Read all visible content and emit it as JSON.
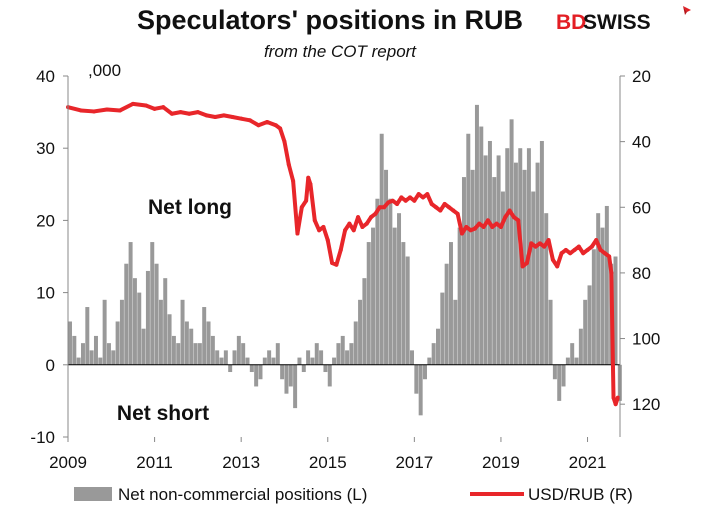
{
  "chart_data": {
    "type": "bar+line",
    "title": "Speculators' positions in RUB",
    "subtitle": "from the COT report",
    "left_axis_unit": ",000",
    "left_ylim": [
      -10,
      40
    ],
    "left_ticks": [
      -10,
      0,
      10,
      20,
      30,
      40
    ],
    "right_ylim": [
      130,
      20
    ],
    "right_ticks": [
      20,
      40,
      60,
      80,
      100,
      120
    ],
    "right_axis_inverted": true,
    "xlim": [
      2009,
      2021.75
    ],
    "x_ticks": [
      2009,
      2011,
      2013,
      2015,
      2017,
      2019,
      2021
    ],
    "annotations": [
      "Net long",
      "Net short"
    ],
    "legend_placement": "bottom",
    "series": [
      {
        "name": "Net non-commercial positions (L)",
        "type": "bar",
        "axis": "left",
        "color": "#999999",
        "points": [
          [
            2009.0,
            6
          ],
          [
            2009.1,
            4
          ],
          [
            2009.2,
            1
          ],
          [
            2009.3,
            3
          ],
          [
            2009.4,
            8
          ],
          [
            2009.5,
            2
          ],
          [
            2009.6,
            4
          ],
          [
            2009.7,
            1
          ],
          [
            2009.8,
            9
          ],
          [
            2009.9,
            3
          ],
          [
            2010.0,
            2
          ],
          [
            2010.1,
            6
          ],
          [
            2010.2,
            9
          ],
          [
            2010.3,
            14
          ],
          [
            2010.4,
            17
          ],
          [
            2010.5,
            12
          ],
          [
            2010.6,
            10
          ],
          [
            2010.7,
            5
          ],
          [
            2010.8,
            13
          ],
          [
            2010.9,
            17
          ],
          [
            2011.0,
            14
          ],
          [
            2011.1,
            9
          ],
          [
            2011.2,
            12
          ],
          [
            2011.3,
            7
          ],
          [
            2011.4,
            4
          ],
          [
            2011.5,
            3
          ],
          [
            2011.6,
            9
          ],
          [
            2011.7,
            6
          ],
          [
            2011.8,
            5
          ],
          [
            2011.9,
            3
          ],
          [
            2012.0,
            3
          ],
          [
            2012.1,
            8
          ],
          [
            2012.2,
            6
          ],
          [
            2012.3,
            4
          ],
          [
            2012.4,
            2
          ],
          [
            2012.5,
            1
          ],
          [
            2012.6,
            2
          ],
          [
            2012.7,
            -1
          ],
          [
            2012.8,
            2
          ],
          [
            2012.9,
            4
          ],
          [
            2013.0,
            3
          ],
          [
            2013.1,
            1
          ],
          [
            2013.2,
            -1
          ],
          [
            2013.3,
            -3
          ],
          [
            2013.4,
            -2
          ],
          [
            2013.5,
            1
          ],
          [
            2013.6,
            2
          ],
          [
            2013.7,
            1
          ],
          [
            2013.8,
            3
          ],
          [
            2013.9,
            -2
          ],
          [
            2014.0,
            -4
          ],
          [
            2014.1,
            -3
          ],
          [
            2014.2,
            -6
          ],
          [
            2014.3,
            1
          ],
          [
            2014.4,
            -1
          ],
          [
            2014.5,
            2
          ],
          [
            2014.6,
            1
          ],
          [
            2014.7,
            3
          ],
          [
            2014.8,
            2
          ],
          [
            2014.9,
            -1
          ],
          [
            2015.0,
            -3
          ],
          [
            2015.1,
            1
          ],
          [
            2015.2,
            3
          ],
          [
            2015.3,
            4
          ],
          [
            2015.4,
            2
          ],
          [
            2015.5,
            3
          ],
          [
            2015.6,
            6
          ],
          [
            2015.7,
            9
          ],
          [
            2015.8,
            12
          ],
          [
            2015.9,
            17
          ],
          [
            2016.0,
            19
          ],
          [
            2016.1,
            23
          ],
          [
            2016.2,
            32
          ],
          [
            2016.3,
            27
          ],
          [
            2016.4,
            23
          ],
          [
            2016.5,
            19
          ],
          [
            2016.6,
            21
          ],
          [
            2016.7,
            17
          ],
          [
            2016.8,
            15
          ],
          [
            2016.9,
            2
          ],
          [
            2017.0,
            -4
          ],
          [
            2017.1,
            -7
          ],
          [
            2017.2,
            -2
          ],
          [
            2017.3,
            1
          ],
          [
            2017.4,
            3
          ],
          [
            2017.5,
            5
          ],
          [
            2017.6,
            10
          ],
          [
            2017.7,
            14
          ],
          [
            2017.8,
            17
          ],
          [
            2017.9,
            9
          ],
          [
            2018.0,
            19
          ],
          [
            2018.1,
            26
          ],
          [
            2018.2,
            32
          ],
          [
            2018.3,
            27
          ],
          [
            2018.4,
            36
          ],
          [
            2018.5,
            33
          ],
          [
            2018.6,
            29
          ],
          [
            2018.7,
            31
          ],
          [
            2018.8,
            26
          ],
          [
            2018.9,
            29
          ],
          [
            2019.0,
            24
          ],
          [
            2019.1,
            30
          ],
          [
            2019.2,
            34
          ],
          [
            2019.3,
            28
          ],
          [
            2019.4,
            30
          ],
          [
            2019.5,
            27
          ],
          [
            2019.6,
            30
          ],
          [
            2019.7,
            24
          ],
          [
            2019.8,
            28
          ],
          [
            2019.9,
            31
          ],
          [
            2020.0,
            21
          ],
          [
            2020.1,
            9
          ],
          [
            2020.2,
            -2
          ],
          [
            2020.3,
            -5
          ],
          [
            2020.4,
            -3
          ],
          [
            2020.5,
            1
          ],
          [
            2020.6,
            3
          ],
          [
            2020.7,
            1
          ],
          [
            2020.8,
            5
          ],
          [
            2020.9,
            9
          ],
          [
            2021.0,
            11
          ],
          [
            2021.1,
            16
          ],
          [
            2021.2,
            21
          ],
          [
            2021.3,
            19
          ],
          [
            2021.4,
            22
          ],
          [
            2021.5,
            14
          ],
          [
            2021.6,
            15
          ],
          [
            2021.7,
            -5
          ]
        ]
      },
      {
        "name": "USD/RUB (R)",
        "type": "line",
        "axis": "right",
        "color": "#e8262a",
        "points": [
          [
            2009.0,
            29.5
          ],
          [
            2009.3,
            30.5
          ],
          [
            2009.6,
            30.8
          ],
          [
            2009.9,
            30.2
          ],
          [
            2010.2,
            30.5
          ],
          [
            2010.5,
            28.5
          ],
          [
            2010.8,
            29.0
          ],
          [
            2011.0,
            30.0
          ],
          [
            2011.2,
            29.5
          ],
          [
            2011.4,
            31.5
          ],
          [
            2011.6,
            31.0
          ],
          [
            2011.8,
            31.5
          ],
          [
            2012.0,
            31.0
          ],
          [
            2012.2,
            32.0
          ],
          [
            2012.4,
            32.5
          ],
          [
            2012.6,
            32.0
          ],
          [
            2012.8,
            32.5
          ],
          [
            2013.0,
            33.0
          ],
          [
            2013.2,
            33.5
          ],
          [
            2013.4,
            35.0
          ],
          [
            2013.6,
            34.0
          ],
          [
            2013.8,
            35.0
          ],
          [
            2013.9,
            36.0
          ],
          [
            2014.0,
            40.0
          ],
          [
            2014.1,
            47.0
          ],
          [
            2014.2,
            52.0
          ],
          [
            2014.3,
            68.0
          ],
          [
            2014.4,
            60.0
          ],
          [
            2014.5,
            58.0
          ],
          [
            2014.55,
            51.0
          ],
          [
            2014.6,
            53.0
          ],
          [
            2014.7,
            64.0
          ],
          [
            2014.8,
            67.0
          ],
          [
            2014.9,
            66.0
          ],
          [
            2015.0,
            70.0
          ],
          [
            2015.1,
            77.0
          ],
          [
            2015.2,
            77.5
          ],
          [
            2015.3,
            73.0
          ],
          [
            2015.4,
            67.0
          ],
          [
            2015.5,
            65.0
          ],
          [
            2015.6,
            67.0
          ],
          [
            2015.7,
            63.0
          ],
          [
            2015.8,
            66.0
          ],
          [
            2015.9,
            65.0
          ],
          [
            2016.0,
            63.0
          ],
          [
            2016.1,
            62.0
          ],
          [
            2016.2,
            60.0
          ],
          [
            2016.3,
            60.0
          ],
          [
            2016.4,
            58.5
          ],
          [
            2016.5,
            58.0
          ],
          [
            2016.6,
            59.0
          ],
          [
            2016.7,
            57.0
          ],
          [
            2016.8,
            58.0
          ],
          [
            2016.9,
            57.0
          ],
          [
            2017.0,
            58.0
          ],
          [
            2017.1,
            56.0
          ],
          [
            2017.2,
            57.0
          ],
          [
            2017.3,
            56.0
          ],
          [
            2017.4,
            59.0
          ],
          [
            2017.5,
            60.0
          ],
          [
            2017.6,
            61.0
          ],
          [
            2017.7,
            59.0
          ],
          [
            2017.8,
            60.0
          ],
          [
            2017.9,
            61.0
          ],
          [
            2018.0,
            62.0
          ],
          [
            2018.1,
            68.0
          ],
          [
            2018.2,
            66.0
          ],
          [
            2018.3,
            67.0
          ],
          [
            2018.4,
            66.5
          ],
          [
            2018.5,
            65.0
          ],
          [
            2018.6,
            66.0
          ],
          [
            2018.7,
            64.0
          ],
          [
            2018.8,
            66.0
          ],
          [
            2018.9,
            65.0
          ],
          [
            2019.0,
            66.0
          ],
          [
            2019.1,
            63.0
          ],
          [
            2019.2,
            61.0
          ],
          [
            2019.3,
            63.0
          ],
          [
            2019.4,
            64.0
          ],
          [
            2019.5,
            78.0
          ],
          [
            2019.6,
            77.0
          ],
          [
            2019.7,
            71.0
          ],
          [
            2019.8,
            72.0
          ],
          [
            2019.9,
            71.0
          ],
          [
            2020.0,
            72.0
          ],
          [
            2020.1,
            70.0
          ],
          [
            2020.2,
            76.0
          ],
          [
            2020.3,
            78.0
          ],
          [
            2020.4,
            74.0
          ],
          [
            2020.5,
            73.0
          ],
          [
            2020.6,
            74.0
          ],
          [
            2020.7,
            73.0
          ],
          [
            2020.8,
            72.0
          ],
          [
            2020.9,
            74.0
          ],
          [
            2021.0,
            73.0
          ],
          [
            2021.1,
            72.0
          ],
          [
            2021.2,
            70.0
          ],
          [
            2021.3,
            73.0
          ],
          [
            2021.4,
            74.0
          ],
          [
            2021.5,
            75.0
          ],
          [
            2021.55,
            80.0
          ],
          [
            2021.6,
            118.0
          ],
          [
            2021.65,
            120.0
          ],
          [
            2021.7,
            118.0
          ]
        ]
      }
    ]
  },
  "branding": {
    "logo_part_1": "BD",
    "logo_part_2": "SWISS",
    "logo_color": "#e31e24",
    "logo_icon": "plus-star-icon"
  }
}
